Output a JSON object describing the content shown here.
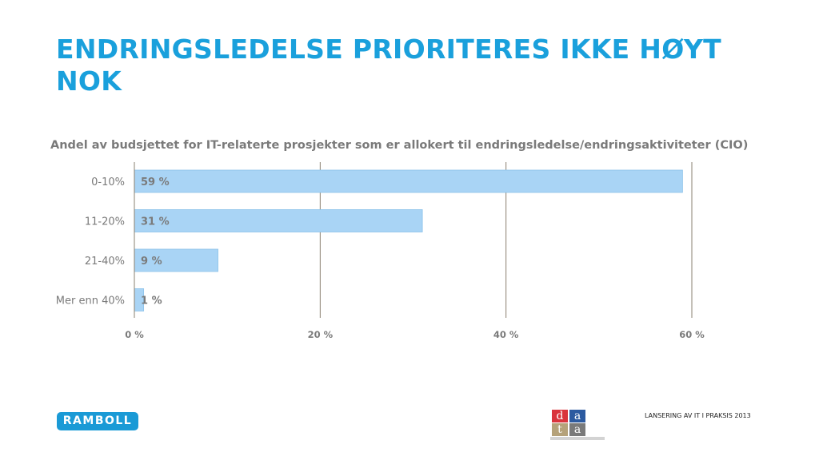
{
  "slide": {
    "title": "ENDRINGSLEDELSE PRIORITERES IKKE HØYT NOK",
    "footer": "LANSERING AV IT I PRAKSIS 2013"
  },
  "logos": {
    "ramboll": "RAMBOLL",
    "data_letters": [
      "d",
      "a",
      "t",
      "a"
    ]
  },
  "colors": {
    "title": "#1aa0dc",
    "bar": "#a9d4f5",
    "bar_border": "#8cc2ea",
    "grid": "#8a8070",
    "axis_text": "#7a7a7a",
    "ramboll_blue": "#1a9ad6",
    "data_red": "#d9343c",
    "data_blue": "#2c5aa0",
    "data_tan": "#b5a27a"
  },
  "chart_data": {
    "type": "bar",
    "orientation": "horizontal",
    "title": "Andel av budsjettet for IT-relaterte prosjekter som er allokert til endringsledelse/endringsaktiviteter (CIO)",
    "categories": [
      "0-10%",
      "11-20%",
      "21-40%",
      "Mer enn 40%"
    ],
    "values": [
      59,
      31,
      9,
      1
    ],
    "data_labels": [
      "59 %",
      "31 %",
      "9 %",
      "1 %"
    ],
    "xlim": [
      0,
      60
    ],
    "xticks": [
      0,
      20,
      40,
      60
    ],
    "xtick_labels": [
      "0 %",
      "20 %",
      "40 %",
      "60 %"
    ],
    "grid": true,
    "legend": "none"
  }
}
